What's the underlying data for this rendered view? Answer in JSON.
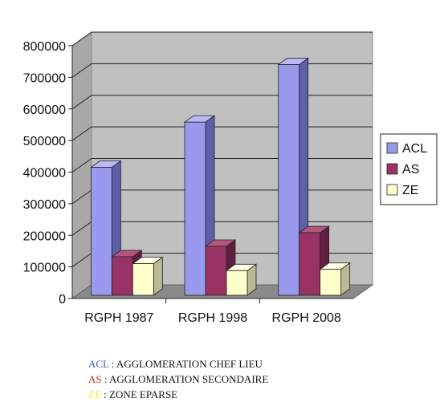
{
  "chart_data": {
    "type": "bar",
    "categories": [
      "RGPH 1987",
      "RGPH 1998",
      "RGPH 2008"
    ],
    "series": [
      {
        "name": "ACL",
        "values": [
          405000,
          548000,
          730000
        ]
      },
      {
        "name": "AS",
        "values": [
          122000,
          155000,
          198000
        ]
      },
      {
        "name": "ZE",
        "values": [
          100000,
          78000,
          82000
        ]
      }
    ],
    "ylim": [
      0,
      800000
    ],
    "yticks": [
      "0",
      "100000",
      "200000",
      "300000",
      "400000",
      "500000",
      "600000",
      "700000",
      "800000"
    ],
    "grid": true,
    "legend_position": "right",
    "colors": {
      "ACL": {
        "front": "#9999ee",
        "side": "#5f5fa9",
        "top": "#b8b8f4"
      },
      "AS": {
        "front": "#993366",
        "side": "#5f1f40",
        "top": "#b5557f"
      },
      "ZE": {
        "front": "#ffffcc",
        "side": "#b9b994",
        "top": "#ffffe6"
      },
      "wall": "#c0c0c0",
      "floor": "#8a8a8a"
    }
  },
  "notes": [
    {
      "abbr": "ACL",
      "text": " : AGGLOMERATION CHEF LIEU",
      "color": "#3355cc"
    },
    {
      "abbr": "AS",
      "text": " : AGGLOMERATION SECONDAIRE",
      "color": "#cc2222"
    },
    {
      "abbr": "ZE",
      "text": " : ZONE EPARSE",
      "color": "#eeee33"
    }
  ]
}
